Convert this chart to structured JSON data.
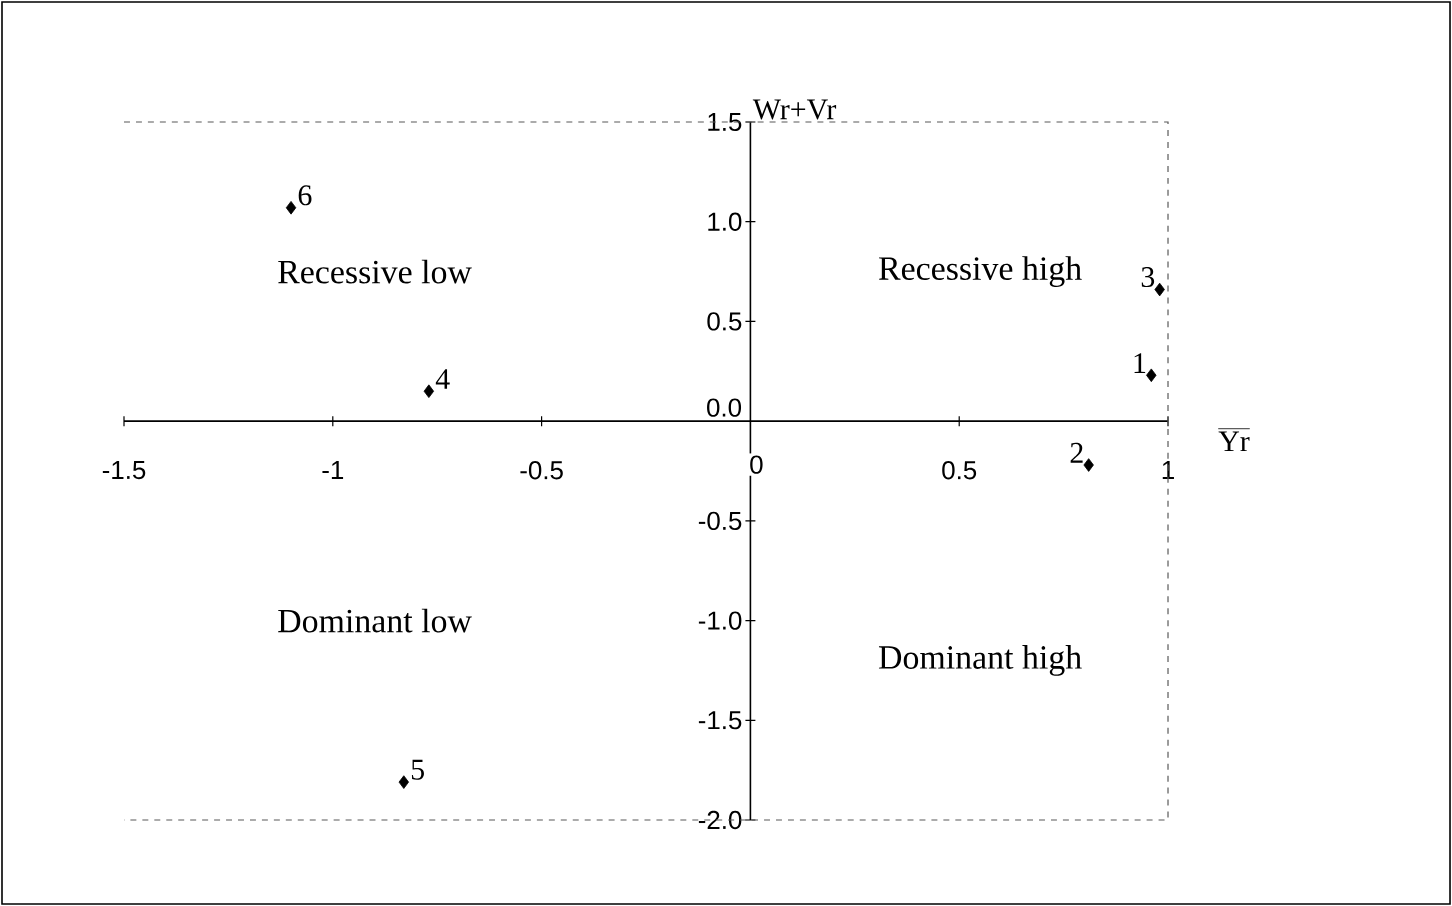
{
  "chart_data": {
    "type": "scatter",
    "xlabel": "Yr",
    "ylabel": "Wr+Vr",
    "series": [
      {
        "color": "#000000",
        "x": [
          0.96,
          0.81,
          0.98,
          -0.77,
          -0.83,
          -1.1
        ],
        "values": [
          0.23,
          -0.22,
          0.66,
          0.15,
          -1.81,
          1.07
        ]
      }
    ],
    "marker": "diamond",
    "grid": false,
    "xlim": [
      -1.5,
      1
    ],
    "ylim": [
      -2,
      1.5
    ],
    "xticks": [
      -1.5,
      -1,
      -0.5,
      0,
      0.5,
      1
    ],
    "yticks": [
      {
        "value": -2,
        "label": "-2.0"
      },
      -1.5,
      {
        "value": -1,
        "label": "-1.0"
      },
      -0.5,
      {
        "value": 0,
        "label": "0.0"
      },
      0.5,
      {
        "value": 1,
        "label": "1.0"
      },
      1.5
    ],
    "annotations": [
      "Recessive low",
      "Recessive high",
      "Dominant low",
      "Dominant high",
      {
        "text": "1",
        "x": 0.96,
        "y": 0.23
      },
      {
        "text": "2",
        "x": 0.81,
        "y": -0.22
      },
      {
        "text": "3",
        "x": 0.98,
        "y": 0.66
      },
      {
        "text": "4",
        "x": -0.77,
        "y": 0.15
      },
      {
        "text": "5",
        "x": -0.83,
        "y": -1.81
      },
      {
        "text": "6",
        "x": -1.1,
        "y": 1.07
      }
    ]
  }
}
